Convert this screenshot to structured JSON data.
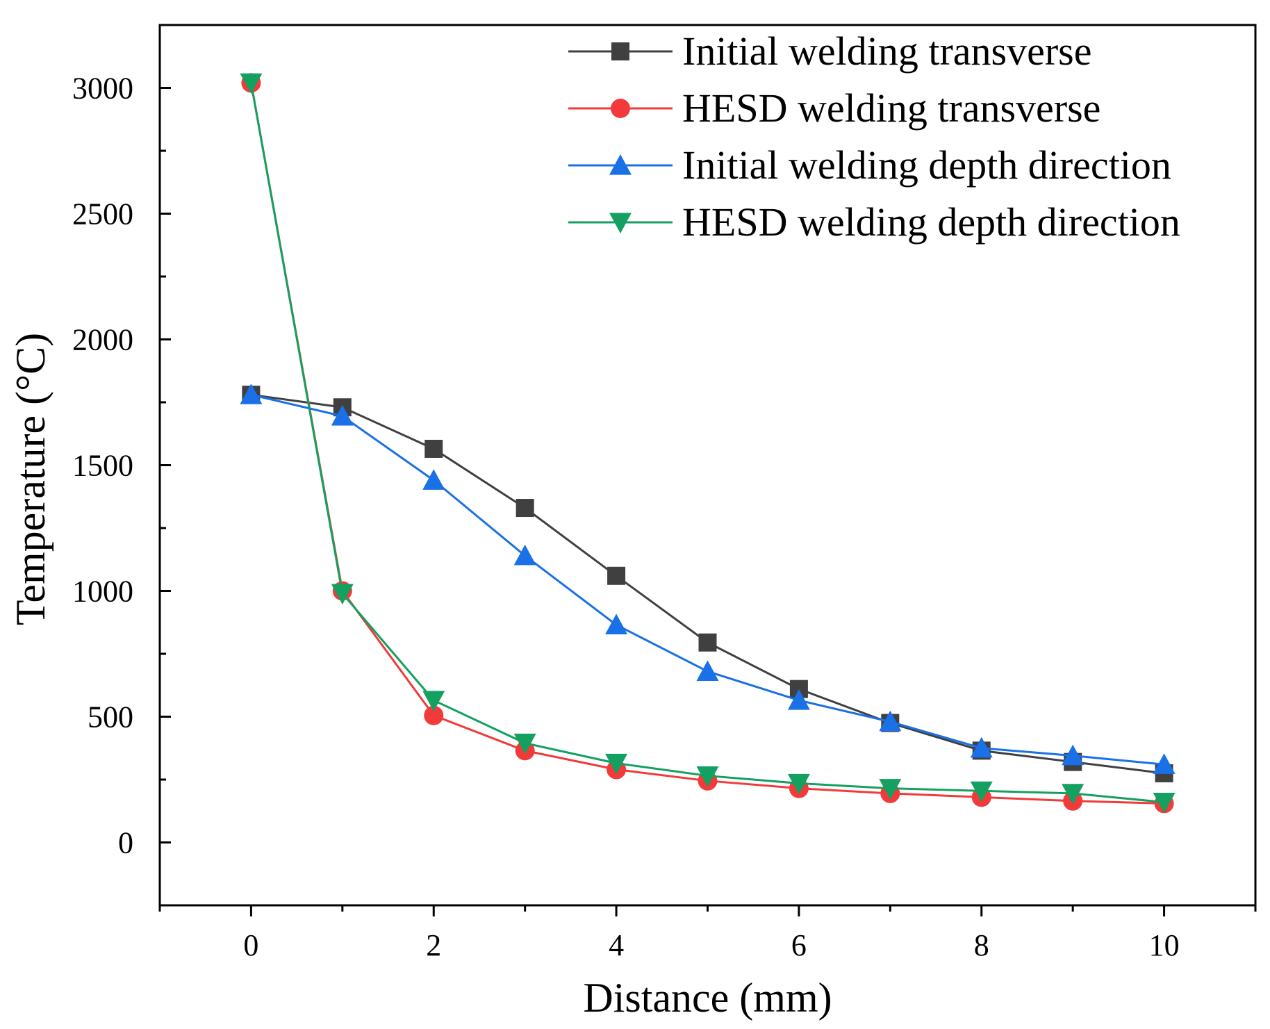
{
  "chart_data": {
    "type": "line",
    "title": "",
    "xlabel": "Distance (mm)",
    "ylabel": "Temperature (°C)",
    "xlim": [
      -1,
      11
    ],
    "ylim": [
      -250,
      3250
    ],
    "x_ticks": [
      0,
      2,
      4,
      6,
      8,
      10
    ],
    "x_tick_labels": [
      "0",
      "2",
      "4",
      "6",
      "8",
      "10"
    ],
    "y_ticks": [
      0,
      500,
      1000,
      1500,
      2000,
      2500,
      3000
    ],
    "y_tick_labels": [
      "0",
      "500",
      "1000",
      "1500",
      "2000",
      "2500",
      "3000"
    ],
    "legend_position": "top-right",
    "x": [
      0,
      1,
      2,
      3,
      4,
      5,
      6,
      7,
      8,
      9,
      10
    ],
    "series": [
      {
        "name": "Initial welding transverse",
        "color": "#404040",
        "marker": "square",
        "values": [
          1780,
          1730,
          1565,
          1330,
          1060,
          795,
          610,
          475,
          365,
          320,
          275
        ]
      },
      {
        "name": "HESD welding transverse",
        "color": "#f23a3a",
        "marker": "circle",
        "values": [
          3020,
          1000,
          505,
          365,
          290,
          245,
          215,
          195,
          180,
          165,
          155
        ]
      },
      {
        "name": "Initial welding depth direction",
        "color": "#1a70e6",
        "marker": "triangle-up",
        "values": [
          1780,
          1695,
          1440,
          1140,
          865,
          680,
          565,
          480,
          375,
          345,
          310
        ]
      },
      {
        "name": "HESD welding depth direction",
        "color": "#14a060",
        "marker": "triangle-down",
        "values": [
          3020,
          990,
          565,
          395,
          315,
          265,
          235,
          215,
          205,
          195,
          160
        ]
      }
    ]
  }
}
